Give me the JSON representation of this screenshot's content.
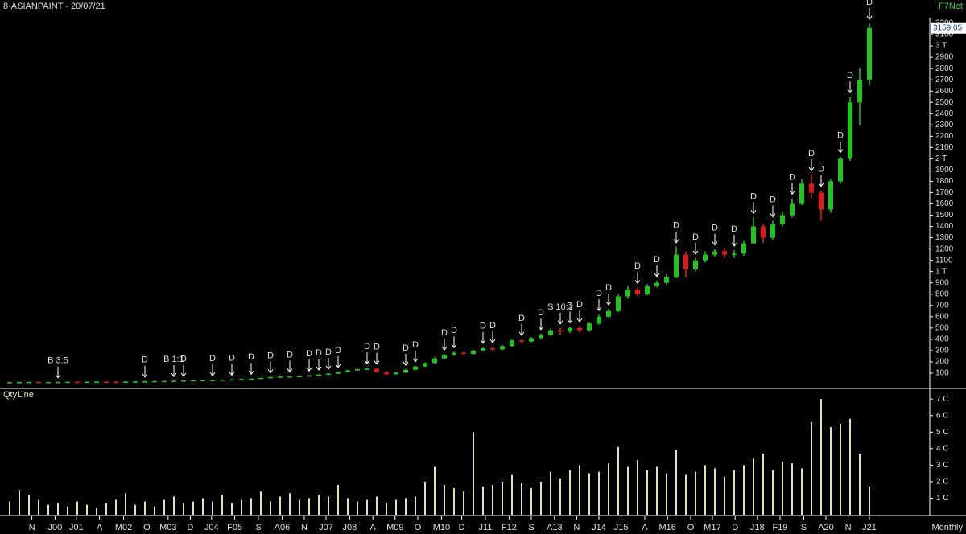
{
  "chart_data": [
    {
      "type": "candlestick",
      "title": "8-ASIANPAINT - 20/07/21",
      "source": "F7Net",
      "up_color": "#22c422",
      "down_color": "#e01a1a",
      "open": [
        19,
        20,
        21,
        22,
        20,
        21,
        22,
        23,
        22,
        24,
        25,
        24,
        23,
        25,
        27,
        28,
        30,
        31,
        33,
        35,
        37,
        38,
        40,
        42,
        45,
        48,
        52,
        58,
        65,
        70,
        72,
        75,
        80,
        88,
        95,
        110,
        125,
        135,
        140,
        110,
        90,
        105,
        130,
        160,
        190,
        230,
        260,
        280,
        270,
        300,
        320,
        310,
        340,
        390,
        380,
        410,
        440,
        480,
        470,
        500,
        480,
        540,
        600,
        650,
        780,
        840,
        800,
        870,
        900,
        950,
        1150,
        1020,
        1100,
        1150,
        1180,
        1150,
        1160,
        1250,
        1400,
        1300,
        1420,
        1500,
        1600,
        1780,
        1700,
        1550,
        1800,
        2000,
        2500,
        2700
      ],
      "high": [
        22,
        23,
        24,
        23,
        23,
        24,
        25,
        25,
        26,
        27,
        27,
        26,
        27,
        29,
        30,
        32,
        33,
        35,
        37,
        39,
        40,
        42,
        44,
        47,
        50,
        55,
        61,
        68,
        73,
        75,
        78,
        84,
        92,
        100,
        115,
        130,
        140,
        148,
        145,
        115,
        110,
        135,
        165,
        195,
        240,
        270,
        290,
        290,
        310,
        330,
        335,
        350,
        400,
        400,
        420,
        450,
        495,
        500,
        510,
        520,
        550,
        620,
        670,
        800,
        870,
        860,
        890,
        920,
        980,
        1220,
        1180,
        1120,
        1180,
        1200,
        1210,
        1190,
        1270,
        1480,
        1420,
        1450,
        1530,
        1650,
        1820,
        1860,
        1720,
        1820,
        2020,
        2550,
        2800,
        3200
      ],
      "low": [
        18,
        19,
        20,
        19,
        19,
        20,
        21,
        21,
        21,
        23,
        23,
        22,
        22,
        24,
        26,
        27,
        29,
        30,
        32,
        34,
        36,
        37,
        39,
        41,
        44,
        47,
        51,
        56,
        63,
        68,
        70,
        73,
        78,
        86,
        93,
        107,
        122,
        130,
        105,
        85,
        88,
        102,
        126,
        155,
        185,
        225,
        255,
        260,
        265,
        295,
        300,
        305,
        335,
        370,
        375,
        400,
        430,
        440,
        455,
        460,
        470,
        530,
        590,
        640,
        760,
        780,
        790,
        860,
        880,
        940,
        950,
        1000,
        1080,
        1130,
        1120,
        1120,
        1140,
        1240,
        1250,
        1280,
        1400,
        1480,
        1590,
        1650,
        1450,
        1520,
        1780,
        1980,
        2300,
        2650
      ],
      "close": [
        20,
        21,
        22,
        20,
        21,
        22,
        23,
        22,
        24,
        25,
        24,
        23,
        25,
        27,
        28,
        30,
        31,
        33,
        35,
        37,
        38,
        40,
        42,
        45,
        48,
        52,
        58,
        65,
        70,
        72,
        75,
        80,
        88,
        95,
        110,
        125,
        135,
        140,
        110,
        90,
        105,
        130,
        160,
        190,
        230,
        260,
        280,
        270,
        300,
        320,
        310,
        340,
        390,
        380,
        410,
        440,
        480,
        470,
        500,
        480,
        540,
        600,
        650,
        780,
        840,
        800,
        870,
        900,
        950,
        1150,
        1020,
        1100,
        1150,
        1180,
        1150,
        1160,
        1250,
        1400,
        1300,
        1420,
        1500,
        1600,
        1780,
        1700,
        1550,
        1800,
        2000,
        2500,
        2700,
        3159.05
      ],
      "ylim": [
        0,
        3250
      ],
      "yticks": [
        100,
        200,
        300,
        400,
        500,
        600,
        700,
        800,
        900,
        {
          "value": 1000,
          "label": "1 T"
        },
        1100,
        1200,
        1300,
        1400,
        1500,
        1600,
        1700,
        1800,
        1900,
        {
          "value": 2000,
          "label": "2 T"
        },
        2100,
        2200,
        2300,
        2400,
        2500,
        2600,
        2700,
        2800,
        2900,
        {
          "value": 3000,
          "label": "3 T"
        },
        3100,
        3200
      ],
      "annotations": [
        {
          "text": "B 3:5",
          "x": 5
        },
        {
          "text": "D",
          "x": 14
        },
        {
          "text": "B 1:1",
          "x": 17
        },
        {
          "text": "D",
          "x": 18
        },
        {
          "text": "D",
          "x": 21
        },
        {
          "text": "D",
          "x": 23
        },
        {
          "text": "D",
          "x": 25
        },
        {
          "text": "D",
          "x": 27
        },
        {
          "text": "D",
          "x": 29
        },
        {
          "text": "D",
          "x": 31
        },
        {
          "text": "D",
          "x": 32
        },
        {
          "text": "D",
          "x": 33
        },
        {
          "text": "D",
          "x": 34
        },
        {
          "text": "D",
          "x": 37
        },
        {
          "text": "D",
          "x": 38
        },
        {
          "text": "D",
          "x": 41
        },
        {
          "text": "D",
          "x": 42
        },
        {
          "text": "D",
          "x": 45
        },
        {
          "text": "D",
          "x": 46
        },
        {
          "text": "D",
          "x": 49
        },
        {
          "text": "D",
          "x": 50
        },
        {
          "text": "D",
          "x": 53
        },
        {
          "text": "D",
          "x": 55
        },
        {
          "text": "S 10:1",
          "x": 57
        },
        {
          "text": "D",
          "x": 58
        },
        {
          "text": "D",
          "x": 59
        },
        {
          "text": "D",
          "x": 61
        },
        {
          "text": "D",
          "x": 62
        },
        {
          "text": "D",
          "x": 65
        },
        {
          "text": "D",
          "x": 67
        },
        {
          "text": "D",
          "x": 69
        },
        {
          "text": "D",
          "x": 71
        },
        {
          "text": "D",
          "x": 73
        },
        {
          "text": "D",
          "x": 75
        },
        {
          "text": "D",
          "x": 77
        },
        {
          "text": "D",
          "x": 79
        },
        {
          "text": "D",
          "x": 81
        },
        {
          "text": "D",
          "x": 83
        },
        {
          "text": "D",
          "x": 84
        },
        {
          "text": "D",
          "x": 86
        },
        {
          "text": "D",
          "x": 87
        },
        {
          "text": "D",
          "x": 89
        }
      ]
    },
    {
      "type": "bar",
      "title": "QtyLine",
      "xlabel": "Monthly",
      "color": "#e6e6a8",
      "values": [
        0.8,
        1.5,
        1.2,
        0.9,
        0.6,
        0.7,
        0.5,
        0.8,
        0.6,
        0.4,
        0.7,
        0.9,
        1.3,
        0.6,
        0.8,
        0.5,
        0.9,
        1.1,
        0.7,
        0.8,
        1.0,
        0.8,
        1.2,
        0.7,
        0.9,
        1.0,
        1.4,
        0.8,
        1.1,
        1.3,
        0.9,
        1.0,
        1.2,
        1.1,
        1.8,
        1.0,
        0.8,
        0.9,
        1.1,
        0.7,
        0.9,
        1.0,
        1.1,
        2.0,
        2.9,
        1.8,
        1.6,
        1.4,
        5.0,
        1.7,
        1.8,
        2.0,
        2.4,
        1.9,
        1.6,
        2.0,
        2.6,
        2.2,
        2.7,
        3.0,
        2.5,
        2.6,
        3.1,
        4.1,
        2.9,
        3.3,
        2.7,
        2.9,
        2.5,
        3.9,
        2.4,
        2.6,
        3.0,
        2.8,
        2.3,
        2.7,
        3.0,
        3.4,
        3.7,
        2.7,
        3.2,
        3.1,
        2.8,
        5.6,
        7.0,
        5.3,
        5.5,
        5.8,
        3.7,
        1.7
      ],
      "ylim": [
        0,
        7.3
      ],
      "yticks": [
        {
          "value": 1,
          "label": "1 C"
        },
        {
          "value": 2,
          "label": "2 C"
        },
        {
          "value": 3,
          "label": "3 C"
        },
        {
          "value": 4,
          "label": "4 C"
        },
        {
          "value": 5,
          "label": "5 C"
        },
        {
          "value": 6,
          "label": "6 C"
        },
        {
          "value": 7,
          "label": "7 C"
        }
      ],
      "xticks": [
        {
          "value": 2.3,
          "label": "N"
        },
        {
          "value": 4.7,
          "label": "J00"
        },
        {
          "value": 6.9,
          "label": "J01"
        },
        {
          "value": 9.3,
          "label": "A"
        },
        {
          "value": 11.8,
          "label": "M02"
        },
        {
          "value": 14.2,
          "label": "O"
        },
        {
          "value": 16.4,
          "label": "M03"
        },
        {
          "value": 18.7,
          "label": "D"
        },
        {
          "value": 20.9,
          "label": "J04"
        },
        {
          "value": 23.3,
          "label": "F05"
        },
        {
          "value": 25.75,
          "label": "S"
        },
        {
          "value": 28.2,
          "label": "A06"
        },
        {
          "value": 30.5,
          "label": "N"
        },
        {
          "value": 32.75,
          "label": "J07"
        },
        {
          "value": 35.2,
          "label": "J08"
        },
        {
          "value": 37.6,
          "label": "A"
        },
        {
          "value": 39.9,
          "label": "M09"
        },
        {
          "value": 42.25,
          "label": "O"
        },
        {
          "value": 44.7,
          "label": "M10"
        },
        {
          "value": 46.8,
          "label": "D"
        },
        {
          "value": 49.25,
          "label": "J11"
        },
        {
          "value": 51.7,
          "label": "F12"
        },
        {
          "value": 54,
          "label": "S"
        },
        {
          "value": 56.4,
          "label": "A13"
        },
        {
          "value": 58.7,
          "label": "N"
        },
        {
          "value": 61,
          "label": "J14"
        },
        {
          "value": 63.3,
          "label": "J15"
        },
        {
          "value": 65.75,
          "label": "A"
        },
        {
          "value": 68.1,
          "label": "M16"
        },
        {
          "value": 70.5,
          "label": "O"
        },
        {
          "value": 72.75,
          "label": "M17"
        },
        {
          "value": 75.1,
          "label": "D"
        },
        {
          "value": 77.4,
          "label": "J18"
        },
        {
          "value": 79.75,
          "label": "F19"
        },
        {
          "value": 82.2,
          "label": "S"
        },
        {
          "value": 84.5,
          "label": "A20"
        },
        {
          "value": 86.8,
          "label": "N"
        },
        {
          "value": 89,
          "label": "J21"
        }
      ]
    }
  ]
}
